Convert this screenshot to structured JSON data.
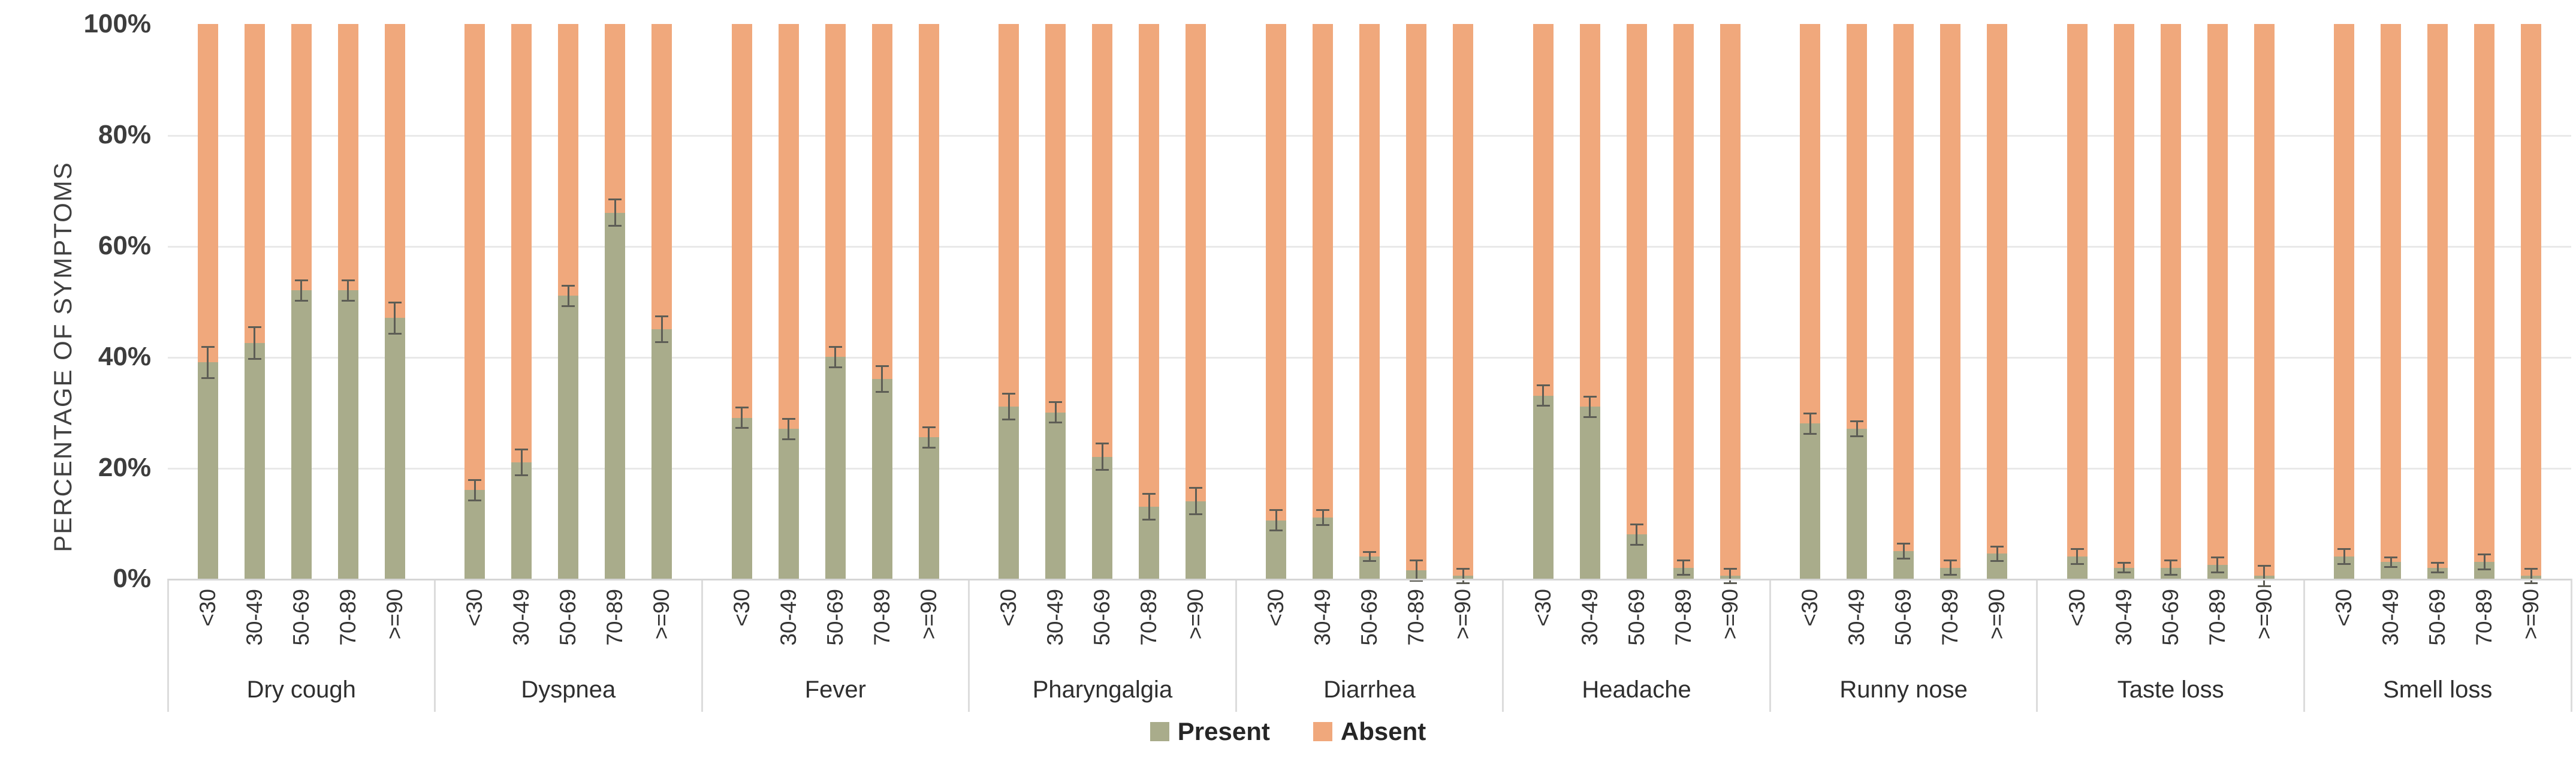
{
  "y_axis": {
    "title": "PERCENTAGE OF SYMPTOMS"
  },
  "chart_data": {
    "type": "bar",
    "stacked": true,
    "stack_total": 100,
    "title": "",
    "xlabel": "",
    "ylabel": "PERCENTAGE OF SYMPTOMS",
    "ylim": [
      0,
      100
    ],
    "ytick_values": [
      0,
      20,
      40,
      60,
      80,
      100
    ],
    "ytick_labels": [
      "0%",
      "20%",
      "40%",
      "60%",
      "80%",
      "100%"
    ],
    "gridline_values": [
      20,
      40,
      60,
      80
    ],
    "grid": true,
    "legend_position": "bottom",
    "age_categories": [
      "<30",
      "30-49",
      "50-69",
      "70-89",
      ">=90"
    ],
    "series_names": [
      "Present",
      "Absent"
    ],
    "groups": [
      {
        "symptom": "Dry cough",
        "present": [
          39,
          42.5,
          52,
          52,
          47
        ],
        "error": [
          3,
          3,
          2,
          2,
          3
        ]
      },
      {
        "symptom": "Dyspnea",
        "present": [
          16,
          21,
          51,
          66,
          45
        ],
        "error": [
          2,
          2.5,
          2,
          2.5,
          2.5
        ]
      },
      {
        "symptom": "Fever",
        "present": [
          29,
          27,
          40,
          36,
          25.5
        ],
        "error": [
          2,
          2,
          2,
          2.5,
          2
        ]
      },
      {
        "symptom": "Pharyngalgia",
        "present": [
          31,
          30,
          22,
          13,
          14
        ],
        "error": [
          2.5,
          2,
          2.5,
          2.5,
          2.5
        ]
      },
      {
        "symptom": "Diarrhea",
        "present": [
          10.5,
          11,
          4,
          1.5,
          0.5
        ],
        "error": [
          2,
          1.5,
          1,
          2,
          1.5
        ]
      },
      {
        "symptom": "Headache",
        "present": [
          33,
          31,
          8,
          2,
          0.5
        ],
        "error": [
          2,
          2,
          2,
          1.5,
          1.5
        ]
      },
      {
        "symptom": "Runny nose",
        "present": [
          28,
          27,
          5,
          2,
          4.5
        ],
        "error": [
          2,
          1.5,
          1.5,
          1.5,
          1.5
        ]
      },
      {
        "symptom": "Taste loss",
        "present": [
          4,
          2,
          2,
          2.5,
          0.5
        ],
        "error": [
          1.5,
          1,
          1.5,
          1.5,
          2
        ]
      },
      {
        "symptom": "Smell loss",
        "present": [
          4,
          3,
          2,
          3,
          0.5
        ],
        "error": [
          1.5,
          1,
          1,
          1.5,
          1.5
        ]
      }
    ],
    "legend": [
      {
        "label": "Present",
        "color": "#a9ac8b"
      },
      {
        "label": "Absent",
        "color": "#f0a87c"
      }
    ],
    "colors": {
      "present": "#a9ac8b",
      "absent": "#f0a87c",
      "error_bar": "#5d5d55",
      "gridline": "#e9e9e9",
      "axis_line": "#d6d6d6",
      "text": "#333333"
    }
  }
}
